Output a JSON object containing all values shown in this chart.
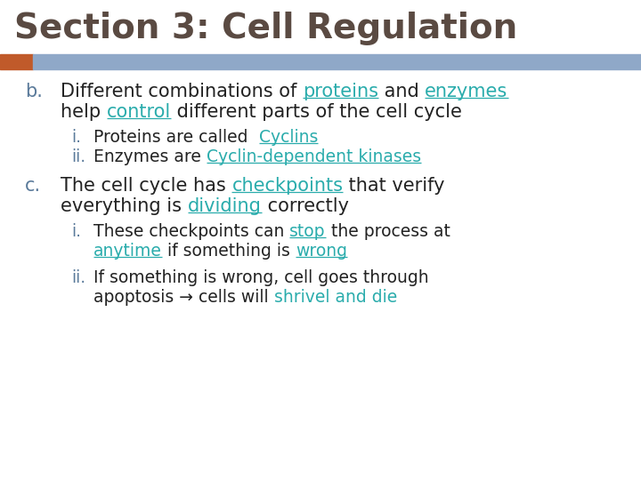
{
  "title": "Section 3: Cell Regulation",
  "title_color": "#5a4a42",
  "title_fontsize": 28,
  "bg_color": "#ffffff",
  "bar_bg_color": "#8fa8c8",
  "bar_accent_color": "#c05a2a",
  "label_color": "#5a7a9a",
  "teal_color": "#2aacac",
  "black_color": "#222222",
  "content": [
    {
      "prefix": "b.",
      "parts": [
        {
          "text": "Different combinations of ",
          "color": "#222222",
          "underline": false
        },
        {
          "text": "proteins",
          "color": "#2aacac",
          "underline": true
        },
        {
          "text": " and ",
          "color": "#222222",
          "underline": false
        },
        {
          "text": "enzymes",
          "color": "#2aacac",
          "underline": true
        }
      ],
      "line2parts": [
        {
          "text": "help ",
          "color": "#222222",
          "underline": false
        },
        {
          "text": "control",
          "color": "#2aacac",
          "underline": true
        },
        {
          "text": " different parts of the cell cycle",
          "color": "#222222",
          "underline": false
        }
      ]
    },
    {
      "prefix": "i.",
      "indent": 1,
      "parts": [
        {
          "text": "Proteins are called  ",
          "color": "#222222",
          "underline": false
        },
        {
          "text": "Cyclins",
          "color": "#2aacac",
          "underline": true
        }
      ]
    },
    {
      "prefix": "ii.",
      "indent": 1,
      "parts": [
        {
          "text": "Enzymes are ",
          "color": "#222222",
          "underline": false
        },
        {
          "text": "Cyclin-dependent kinases",
          "color": "#2aacac",
          "underline": true
        }
      ]
    },
    {
      "prefix": "c.",
      "parts": [
        {
          "text": "The cell cycle has ",
          "color": "#222222",
          "underline": false
        },
        {
          "text": "checkpoints",
          "color": "#2aacac",
          "underline": true
        },
        {
          "text": " that verify",
          "color": "#222222",
          "underline": false
        }
      ],
      "line2parts": [
        {
          "text": "everything is ",
          "color": "#222222",
          "underline": false
        },
        {
          "text": "dividing",
          "color": "#2aacac",
          "underline": true
        },
        {
          "text": " correctly",
          "color": "#222222",
          "underline": false
        }
      ]
    },
    {
      "prefix": "i.",
      "indent": 1,
      "parts": [
        {
          "text": "These checkpoints can ",
          "color": "#222222",
          "underline": false
        },
        {
          "text": "stop",
          "color": "#2aacac",
          "underline": true
        },
        {
          "text": " the process at",
          "color": "#222222",
          "underline": false
        }
      ],
      "line2parts": [
        {
          "text": "anytime",
          "color": "#2aacac",
          "underline": true
        },
        {
          "text": " if something is ",
          "color": "#222222",
          "underline": false
        },
        {
          "text": "wrong",
          "color": "#2aacac",
          "underline": true
        }
      ]
    },
    {
      "prefix": "ii.",
      "indent": 1,
      "parts": [
        {
          "text": "If something is wrong, cell goes through",
          "color": "#222222",
          "underline": false
        }
      ],
      "line2parts": [
        {
          "text": "apoptosis → cells will ",
          "color": "#222222",
          "underline": false
        },
        {
          "text": "shrivel and die",
          "color": "#2aacac",
          "underline": false
        }
      ]
    }
  ]
}
